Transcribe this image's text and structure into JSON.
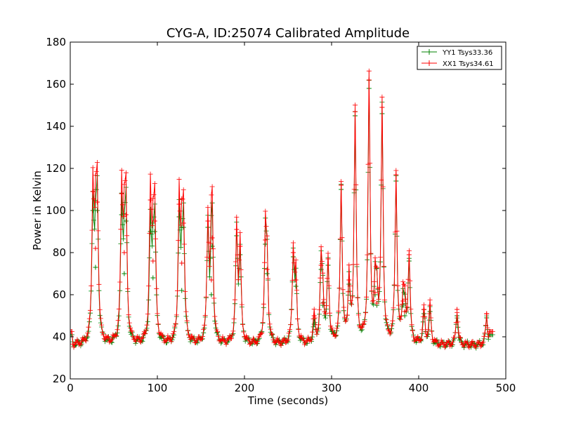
{
  "chart_data": {
    "type": "line",
    "title": "CYG-A, ID:25074 Calibrated Amplitude",
    "xlabel": "Time (seconds)",
    "ylabel": "Power in Kelvin",
    "xlim": [
      0,
      500
    ],
    "ylim": [
      20,
      180
    ],
    "xticks": [
      "0",
      "100",
      "200",
      "300",
      "400",
      "500"
    ],
    "yticks": [
      "20",
      "40",
      "60",
      "80",
      "100",
      "120",
      "140",
      "160",
      "180"
    ],
    "grid": false,
    "legend_position": "top-right",
    "marker": "plus",
    "baseline_kelvin": 36,
    "series": [
      {
        "name": "YY1 Tsys33.36",
        "color": "#008000",
        "peaks": [
          {
            "x": 26,
            "y": 100
          },
          {
            "x": 29,
            "y": 73
          },
          {
            "x": 31,
            "y": 100
          },
          {
            "x": 59,
            "y": 98
          },
          {
            "x": 62,
            "y": 70
          },
          {
            "x": 64,
            "y": 95
          },
          {
            "x": 92,
            "y": 90
          },
          {
            "x": 95,
            "y": 68
          },
          {
            "x": 97,
            "y": 90
          },
          {
            "x": 125,
            "y": 97
          },
          {
            "x": 128,
            "y": 62
          },
          {
            "x": 130,
            "y": 92
          },
          {
            "x": 158,
            "y": 92
          },
          {
            "x": 162,
            "y": 60
          },
          {
            "x": 163,
            "y": 83
          },
          {
            "x": 191,
            "y": 88
          },
          {
            "x": 195,
            "y": 79
          },
          {
            "x": 224,
            "y": 84
          },
          {
            "x": 226,
            "y": 70
          },
          {
            "x": 256,
            "y": 78
          },
          {
            "x": 259,
            "y": 64
          },
          {
            "x": 280,
            "y": 46
          },
          {
            "x": 288,
            "y": 72
          },
          {
            "x": 290,
            "y": 55
          },
          {
            "x": 296,
            "y": 74
          },
          {
            "x": 311,
            "y": 110
          },
          {
            "x": 320,
            "y": 65
          },
          {
            "x": 327,
            "y": 145
          },
          {
            "x": 343,
            "y": 158
          },
          {
            "x": 350,
            "y": 60
          },
          {
            "x": 352,
            "y": 55
          },
          {
            "x": 358,
            "y": 146
          },
          {
            "x": 374,
            "y": 114
          },
          {
            "x": 382,
            "y": 55
          },
          {
            "x": 384,
            "y": 50
          },
          {
            "x": 389,
            "y": 76
          },
          {
            "x": 406,
            "y": 51
          },
          {
            "x": 413,
            "y": 52
          },
          {
            "x": 444,
            "y": 50
          },
          {
            "x": 478,
            "y": 49
          }
        ]
      },
      {
        "name": "XX1 Tsys34.61",
        "color": "#ff0000",
        "peaks": [
          {
            "x": 26,
            "y": 109
          },
          {
            "x": 29,
            "y": 82
          },
          {
            "x": 31,
            "y": 104
          },
          {
            "x": 59,
            "y": 108
          },
          {
            "x": 62,
            "y": 80
          },
          {
            "x": 64,
            "y": 98
          },
          {
            "x": 92,
            "y": 105
          },
          {
            "x": 95,
            "y": 76
          },
          {
            "x": 97,
            "y": 95
          },
          {
            "x": 125,
            "y": 103
          },
          {
            "x": 128,
            "y": 75
          },
          {
            "x": 130,
            "y": 94
          },
          {
            "x": 158,
            "y": 95
          },
          {
            "x": 162,
            "y": 67
          },
          {
            "x": 163,
            "y": 87
          },
          {
            "x": 191,
            "y": 91
          },
          {
            "x": 195,
            "y": 83
          },
          {
            "x": 224,
            "y": 86
          },
          {
            "x": 226,
            "y": 72
          },
          {
            "x": 256,
            "y": 80
          },
          {
            "x": 259,
            "y": 67
          },
          {
            "x": 280,
            "y": 50
          },
          {
            "x": 288,
            "y": 74
          },
          {
            "x": 290,
            "y": 56
          },
          {
            "x": 296,
            "y": 77
          },
          {
            "x": 311,
            "y": 112
          },
          {
            "x": 320,
            "y": 67
          },
          {
            "x": 327,
            "y": 147
          },
          {
            "x": 343,
            "y": 162
          },
          {
            "x": 350,
            "y": 61
          },
          {
            "x": 352,
            "y": 56
          },
          {
            "x": 358,
            "y": 149
          },
          {
            "x": 374,
            "y": 117
          },
          {
            "x": 382,
            "y": 57
          },
          {
            "x": 384,
            "y": 52
          },
          {
            "x": 389,
            "y": 79
          },
          {
            "x": 406,
            "y": 53
          },
          {
            "x": 413,
            "y": 55
          },
          {
            "x": 444,
            "y": 53
          },
          {
            "x": 478,
            "y": 51
          }
        ]
      }
    ]
  }
}
